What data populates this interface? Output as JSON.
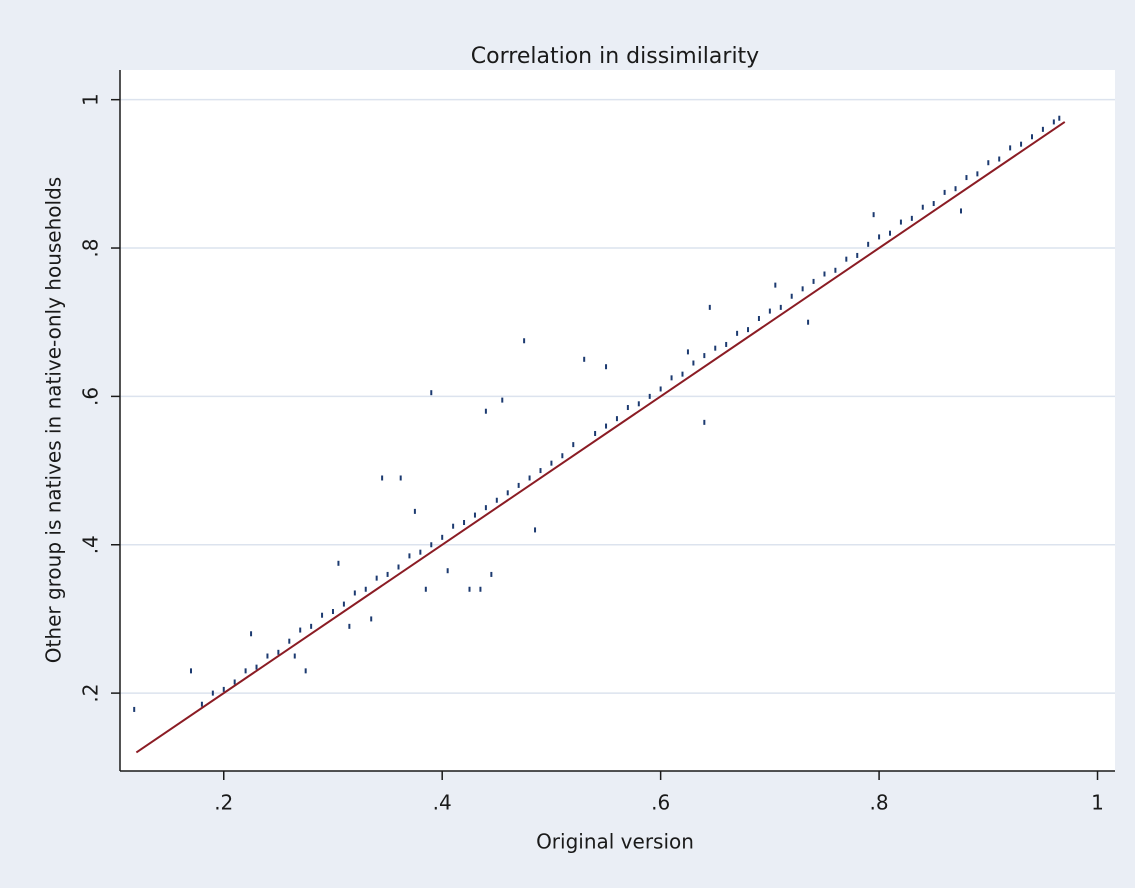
{
  "chart_data": {
    "type": "scatter",
    "title": "Correlation in dissimilarity",
    "x_label": "Original version",
    "y_label": "Other group is natives in native-only households",
    "xlim": [
      0.105,
      1.016
    ],
    "ylim": [
      0.095,
      1.04
    ],
    "xticks": [
      {
        "value": 0.2,
        "label": ".2"
      },
      {
        "value": 0.4,
        "label": ".4"
      },
      {
        "value": 0.6,
        "label": ".6"
      },
      {
        "value": 0.8,
        "label": ".8"
      },
      1
    ],
    "yticks": [
      {
        "value": 0.2,
        "label": ".2"
      },
      {
        "value": 0.4,
        "label": ".4"
      },
      {
        "value": 0.6,
        "label": ".6"
      },
      {
        "value": 0.8,
        "label": ".8"
      },
      1
    ],
    "grid": true,
    "series": [
      {
        "type": "scatter",
        "color": "#1c3a70",
        "x": [
          0.118,
          0.17,
          0.18,
          0.19,
          0.2,
          0.21,
          0.22,
          0.225,
          0.23,
          0.24,
          0.25,
          0.26,
          0.265,
          0.27,
          0.275,
          0.28,
          0.29,
          0.3,
          0.305,
          0.31,
          0.315,
          0.32,
          0.33,
          0.335,
          0.34,
          0.345,
          0.35,
          0.36,
          0.362,
          0.37,
          0.375,
          0.38,
          0.385,
          0.39,
          0.39,
          0.4,
          0.405,
          0.41,
          0.42,
          0.425,
          0.43,
          0.435,
          0.44,
          0.44,
          0.445,
          0.45,
          0.455,
          0.46,
          0.47,
          0.475,
          0.48,
          0.485,
          0.49,
          0.5,
          0.51,
          0.52,
          0.53,
          0.54,
          0.55,
          0.55,
          0.56,
          0.57,
          0.58,
          0.59,
          0.6,
          0.61,
          0.62,
          0.625,
          0.63,
          0.64,
          0.64,
          0.645,
          0.65,
          0.66,
          0.67,
          0.68,
          0.69,
          0.7,
          0.705,
          0.71,
          0.72,
          0.73,
          0.735,
          0.74,
          0.75,
          0.76,
          0.77,
          0.78,
          0.79,
          0.795,
          0.8,
          0.81,
          0.82,
          0.83,
          0.84,
          0.85,
          0.86,
          0.87,
          0.875,
          0.88,
          0.89,
          0.9,
          0.91,
          0.92,
          0.93,
          0.94,
          0.95,
          0.96,
          0.965
        ],
        "values": [
          0.178,
          0.23,
          0.185,
          0.2,
          0.205,
          0.215,
          0.23,
          0.28,
          0.235,
          0.25,
          0.255,
          0.27,
          0.25,
          0.285,
          0.23,
          0.29,
          0.305,
          0.31,
          0.375,
          0.32,
          0.29,
          0.335,
          0.34,
          0.3,
          0.355,
          0.49,
          0.36,
          0.37,
          0.49,
          0.385,
          0.445,
          0.39,
          0.34,
          0.605,
          0.4,
          0.41,
          0.365,
          0.425,
          0.43,
          0.34,
          0.44,
          0.34,
          0.58,
          0.45,
          0.36,
          0.46,
          0.595,
          0.47,
          0.48,
          0.675,
          0.49,
          0.42,
          0.5,
          0.51,
          0.52,
          0.535,
          0.65,
          0.55,
          0.64,
          0.56,
          0.57,
          0.585,
          0.59,
          0.6,
          0.61,
          0.625,
          0.63,
          0.66,
          0.645,
          0.565,
          0.655,
          0.72,
          0.665,
          0.67,
          0.685,
          0.69,
          0.705,
          0.715,
          0.75,
          0.72,
          0.735,
          0.745,
          0.7,
          0.755,
          0.765,
          0.77,
          0.785,
          0.79,
          0.805,
          0.845,
          0.815,
          0.82,
          0.835,
          0.84,
          0.855,
          0.86,
          0.875,
          0.88,
          0.85,
          0.895,
          0.9,
          0.915,
          0.92,
          0.935,
          0.94,
          0.95,
          0.96,
          0.97,
          0.975
        ]
      },
      {
        "type": "line",
        "color": "#8b1c24",
        "x": [
          0.12,
          0.97
        ],
        "values": [
          0.12,
          0.97
        ]
      }
    ]
  }
}
